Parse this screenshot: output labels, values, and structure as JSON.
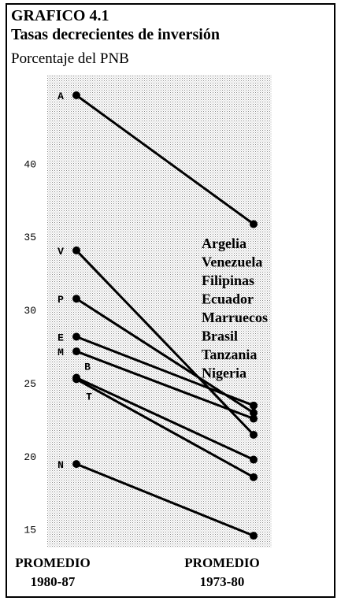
{
  "chart_data": {
    "type": "slope",
    "title": "GRAFICO 4.1",
    "subtitle": "Tasas decrecientes de inversión",
    "y_label": "Porcentaje del PNB",
    "categories": [
      "PROMEDIO 1980-87",
      "PROMEDIO 1973-80"
    ],
    "series": [
      {
        "name": "Argelia",
        "label": "A",
        "color": "#000000",
        "values": [
          44.7,
          35.9
        ]
      },
      {
        "name": "Venezuela",
        "label": "V",
        "color": "#000000",
        "values": [
          34.1,
          21.5
        ]
      },
      {
        "name": "Filipinas",
        "label": "P",
        "color": "#000000",
        "values": [
          30.8,
          23.0
        ]
      },
      {
        "name": "Ecuador",
        "label": "E",
        "color": "#000000",
        "values": [
          28.2,
          23.5
        ]
      },
      {
        "name": "Marruecos",
        "label": "M",
        "color": "#000000",
        "values": [
          27.2,
          22.6
        ]
      },
      {
        "name": "Brasil",
        "label": "B",
        "color": "#000000",
        "values": [
          25.4,
          19.8
        ]
      },
      {
        "name": "Tanzania",
        "label": "T",
        "color": "#000000",
        "values": [
          25.3,
          18.6
        ]
      },
      {
        "name": "Nigeria",
        "label": "N",
        "color": "#000000",
        "values": [
          19.5,
          14.6
        ]
      }
    ],
    "ylim": [
      13.8,
      46.1
    ],
    "yticks": [
      15,
      20,
      25,
      30,
      35,
      40
    ]
  }
}
